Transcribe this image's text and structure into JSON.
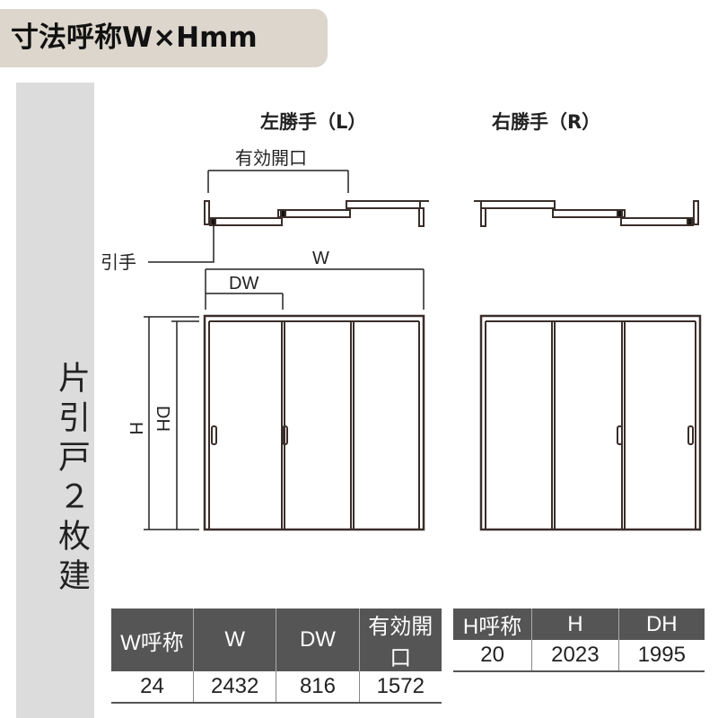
{
  "header": {
    "title": "寸法呼称W×Hmm",
    "badge_color": "#dcd6cc"
  },
  "sidebar": {
    "label": "片引戸２枚建"
  },
  "diagram": {
    "left_title": "左勝手（L）",
    "right_title": "右勝手（R）",
    "effective_opening_label": "有効開口",
    "handle_label": "引手",
    "w_label": "W",
    "dw_label": "DW",
    "h_label": "H",
    "dh_label": "DH"
  },
  "table_w": {
    "headers": [
      "W呼称",
      "W",
      "DW",
      "有効開口"
    ],
    "values": [
      "24",
      "2432",
      "816",
      "1572"
    ]
  },
  "table_h": {
    "headers": [
      "H呼称",
      "H",
      "DH"
    ],
    "values": [
      "20",
      "2023",
      "1995"
    ]
  }
}
